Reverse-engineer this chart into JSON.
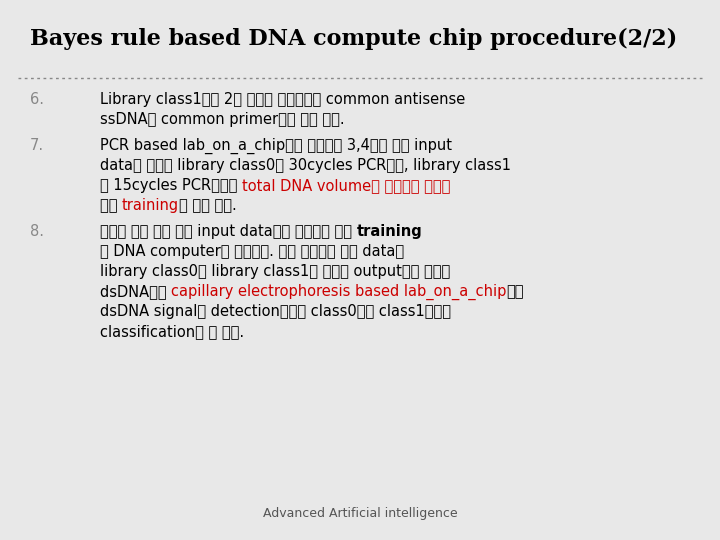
{
  "title": "Bayes rule based DNA compute chip procedure(2/2)",
  "bg_color": "#e8e8e8",
  "title_color": "#000000",
  "title_fontsize": 16,
  "footer": "Advanced Artificial intelligence",
  "footer_fontsize": 9,
  "sep_color": "#888888",
  "items": [
    {
      "number": "6.",
      "num_color": "#888888",
      "lines": [
        [
          {
            "text": "Library class1에는 2번 단계와 마찬가지로 common antisense",
            "color": "#000000",
            "bold": false
          }
        ],
        [
          {
            "text": "ssDNA와 common primer들을 넣어 준다.",
            "color": "#000000",
            "bold": false
          }
        ]
      ]
    },
    {
      "number": "7.",
      "num_color": "#888888",
      "lines": [
        [
          {
            "text": "PCR based lab_on_a_chip으로 들어가면 3,4번과 같이 input",
            "color": "#000000",
            "bold": false
          }
        ],
        [
          {
            "text": "data가 들어간 library class0는 30cycles PCR되고, library class1",
            "color": "#000000",
            "bold": false
          }
        ],
        [
          {
            "text": "은 15cycles PCR되어서 ",
            "color": "#000000",
            "bold": false
          },
          {
            "text": "total DNA volume이 일정하게 유지되",
            "color": "#cc0000",
            "bold": false
          }
        ],
        [
          {
            "text": "면서 ",
            "color": "#000000",
            "bold": false
          },
          {
            "text": "training",
            "color": "#cc0000",
            "bold": false
          },
          {
            "text": "을 하게 된다.",
            "color": "#000000",
            "bold": false
          }
        ]
      ]
    },
    {
      "number": "8.",
      "num_color": "#888888",
      "lines": [
        [
          {
            "text": "이렇게 해서 여러 개의 input data들이 들어오고 나면 ",
            "color": "#000000",
            "bold": false
          },
          {
            "text": "training",
            "color": "#000000",
            "bold": true
          }
        ],
        [
          {
            "text": "된 DNA computer가 완성된다. 이때 알려지지 않은 data를",
            "color": "#000000",
            "bold": false
          }
        ],
        [
          {
            "text": "library class0과 library class1에 넣어서 output으로 나오는",
            "color": "#000000",
            "bold": false
          }
        ],
        [
          {
            "text": "dsDNA들을 ",
            "color": "#000000",
            "bold": false
          },
          {
            "text": "capillary electrophoresis based lab_on_a_chip",
            "color": "#cc0000",
            "bold": false
          },
          {
            "text": "으로",
            "color": "#000000",
            "bold": false
          }
        ],
        [
          {
            "text": "dsDNA signal을 detection해보면 class0인지 class1인지를",
            "color": "#000000",
            "bold": false
          }
        ],
        [
          {
            "text": "classification할 수 있다.",
            "color": "#000000",
            "bold": false
          }
        ]
      ]
    }
  ]
}
